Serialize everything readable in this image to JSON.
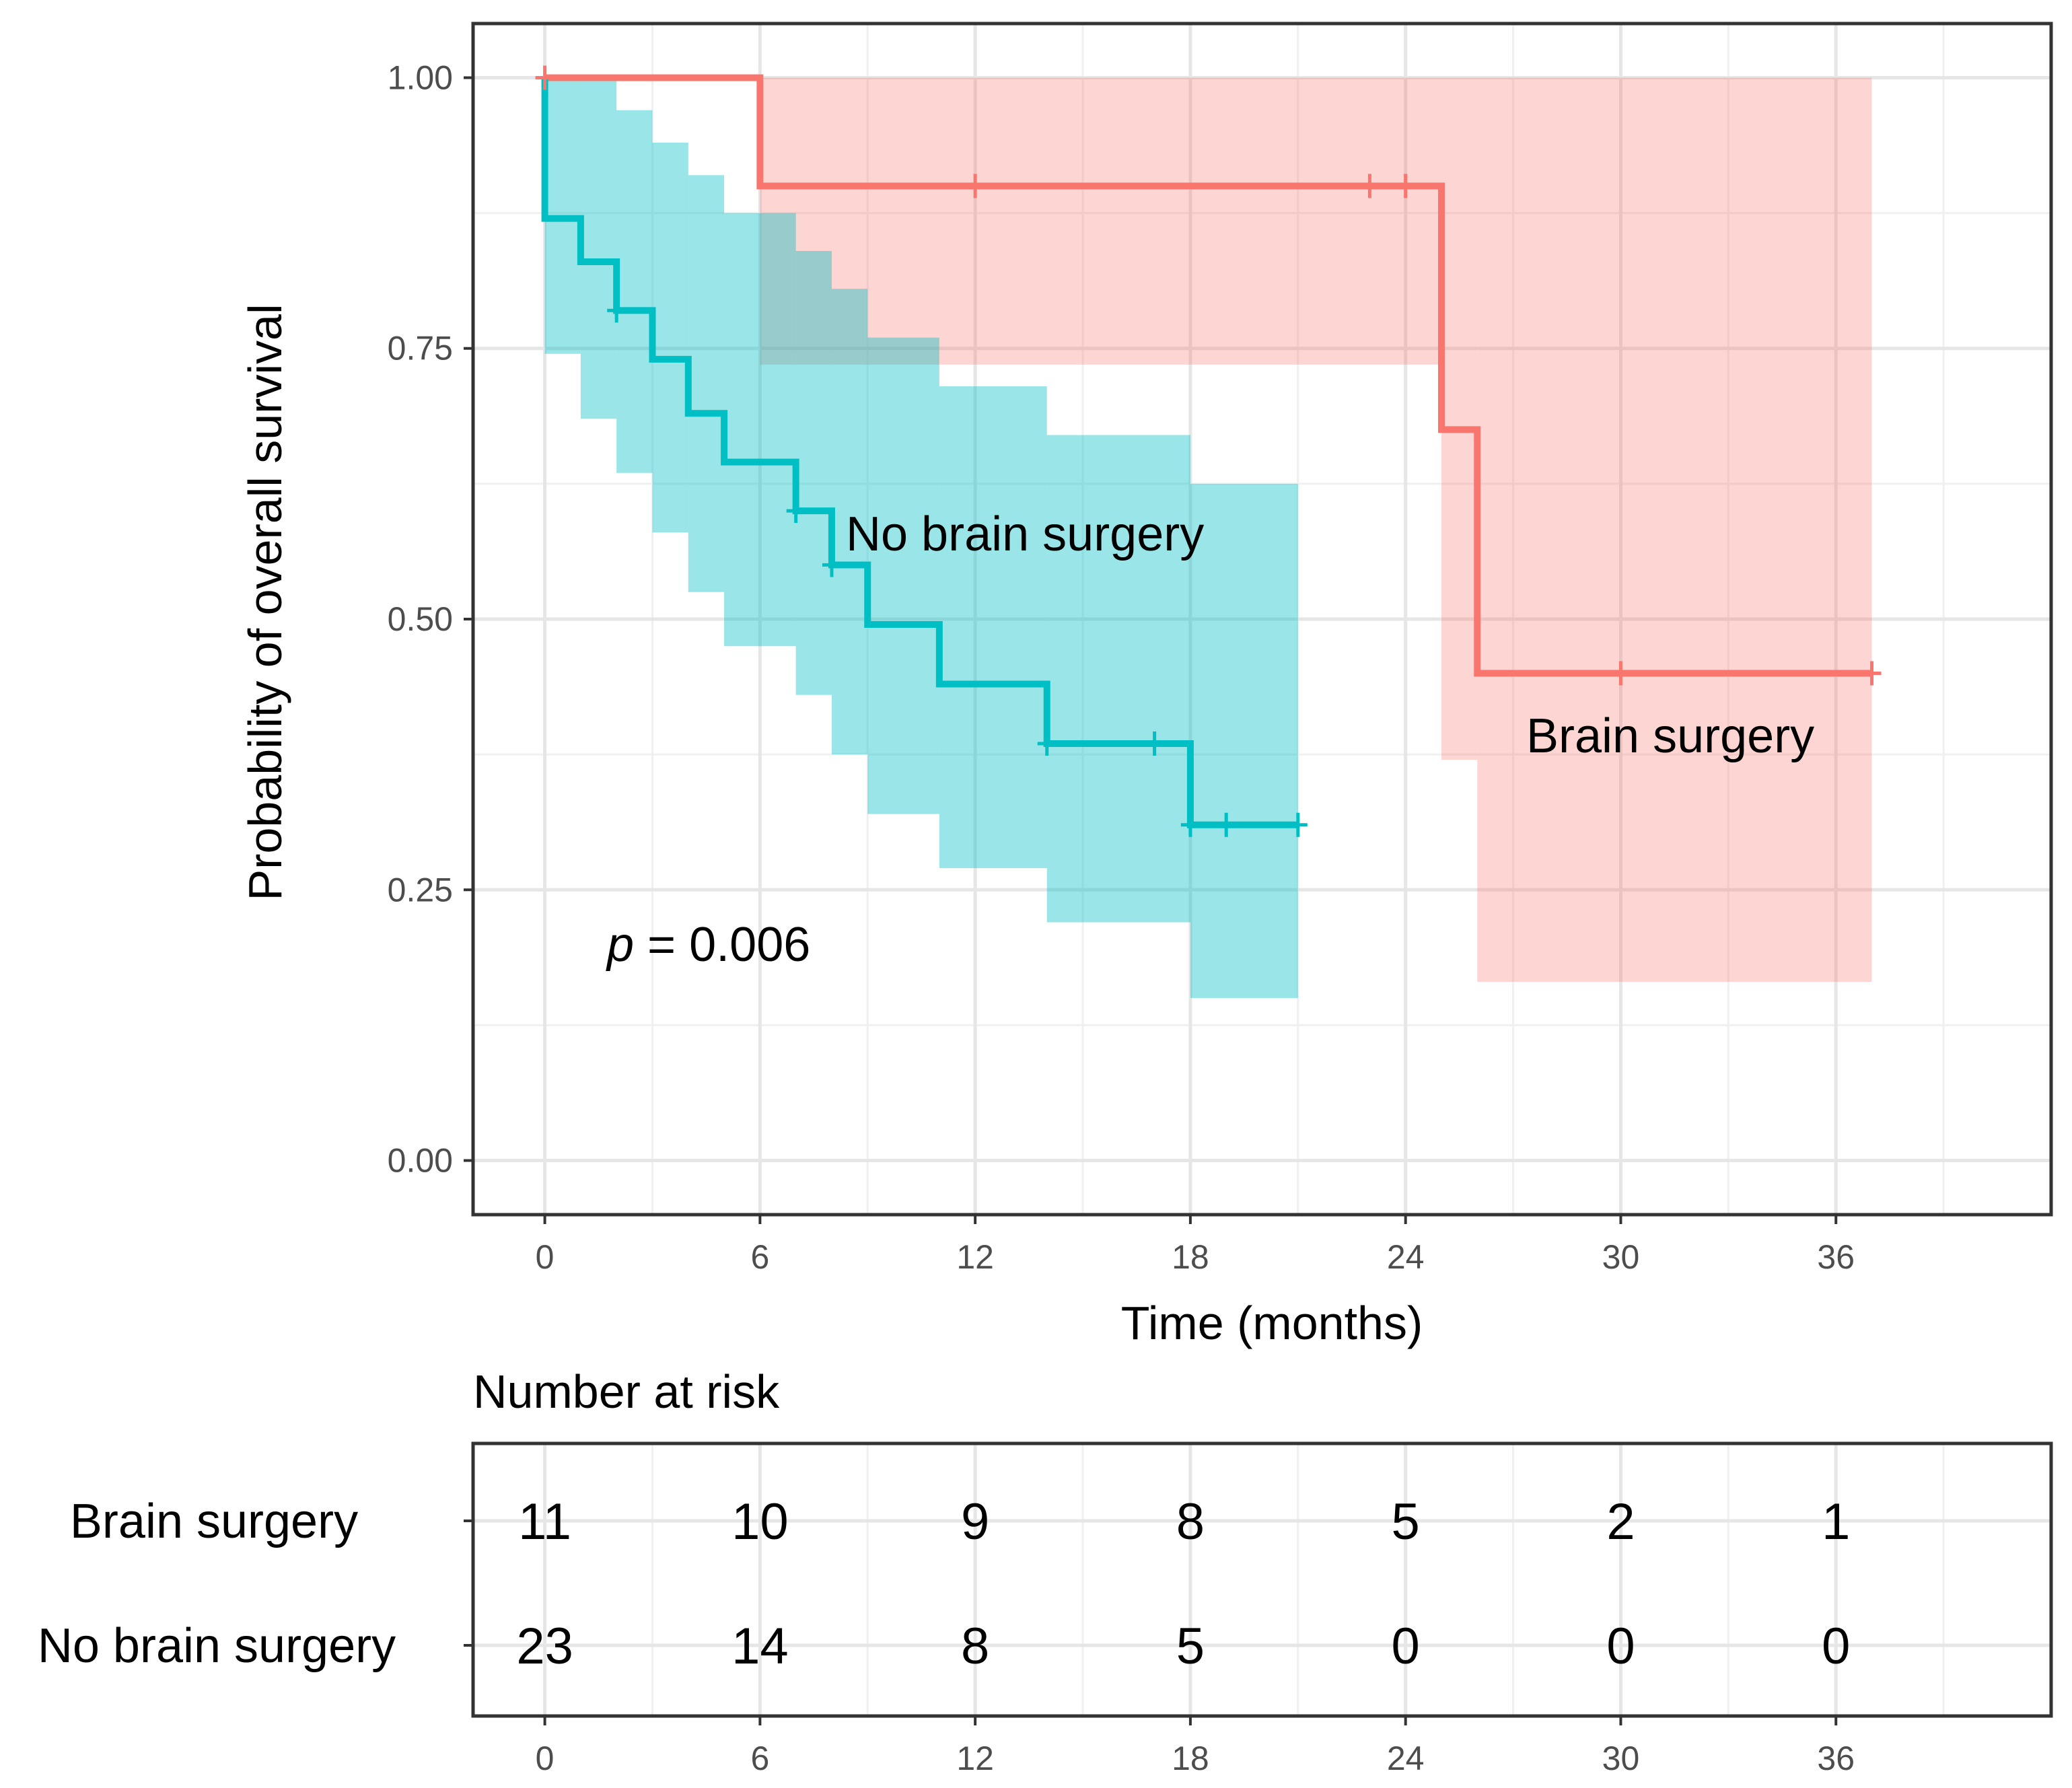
{
  "chart_data": {
    "type": "kaplan-meier",
    "title": "",
    "xlabel": "Time (months)",
    "ylabel": "Probability of overall survival",
    "xlim": [
      -2,
      42
    ],
    "ylim": [
      -0.05,
      1.05
    ],
    "x_ticks": [
      0,
      6,
      12,
      18,
      24,
      30,
      36
    ],
    "x_tick_labels": [
      "0",
      "6",
      "12",
      "18",
      "24",
      "30",
      "36"
    ],
    "y_ticks": [
      0,
      0.25,
      0.5,
      0.75,
      1.0
    ],
    "y_tick_labels": [
      "0.00",
      "0.25",
      "0.50",
      "0.75",
      "1.00"
    ],
    "grid": true,
    "p_value_symbol": "p",
    "p_value_text": " = 0.006",
    "series": [
      {
        "name": "Brain surgery",
        "label": "Brain surgery",
        "color": "#f8766d",
        "fill_color": "#f8766d",
        "steps": [
          [
            0,
            1.0
          ],
          [
            6,
            0.9
          ],
          [
            25,
            0.675
          ],
          [
            26,
            0.45
          ],
          [
            37,
            0.45
          ]
        ],
        "censor_times": [
          0,
          12,
          23,
          24,
          30,
          37
        ],
        "ci": [
          {
            "t0": 0,
            "t1": 6,
            "lo": 1.0,
            "hi": 1.0
          },
          {
            "t0": 6,
            "t1": 25,
            "lo": 0.735,
            "hi": 1.0
          },
          {
            "t0": 25,
            "t1": 26,
            "lo": 0.37,
            "hi": 1.0
          },
          {
            "t0": 26,
            "t1": 37,
            "lo": 0.165,
            "hi": 1.0
          }
        ]
      },
      {
        "name": "No brain surgery",
        "label": "No brain surgery",
        "color": "#00bfc4",
        "fill_color": "#00bfc4",
        "steps": [
          [
            0,
            1.0
          ],
          [
            0,
            0.87
          ],
          [
            1,
            0.83
          ],
          [
            2,
            0.785
          ],
          [
            3,
            0.74
          ],
          [
            4,
            0.69
          ],
          [
            5,
            0.645
          ],
          [
            7,
            0.6
          ],
          [
            8,
            0.55
          ],
          [
            9,
            0.495
          ],
          [
            11,
            0.44
          ],
          [
            14,
            0.385
          ],
          [
            18,
            0.31
          ],
          [
            21,
            0.31
          ]
        ],
        "censor_times": [
          2,
          7,
          8,
          14,
          17,
          18,
          19,
          21
        ],
        "ci": [
          {
            "t0": 0,
            "t1": 1,
            "lo": 0.745,
            "hi": 1.0
          },
          {
            "t0": 1,
            "t1": 2,
            "lo": 0.685,
            "hi": 1.0
          },
          {
            "t0": 2,
            "t1": 3,
            "lo": 0.635,
            "hi": 0.97
          },
          {
            "t0": 3,
            "t1": 4,
            "lo": 0.58,
            "hi": 0.94
          },
          {
            "t0": 4,
            "t1": 5,
            "lo": 0.525,
            "hi": 0.91
          },
          {
            "t0": 5,
            "t1": 7,
            "lo": 0.475,
            "hi": 0.875
          },
          {
            "t0": 7,
            "t1": 8,
            "lo": 0.43,
            "hi": 0.84
          },
          {
            "t0": 8,
            "t1": 9,
            "lo": 0.375,
            "hi": 0.805
          },
          {
            "t0": 9,
            "t1": 11,
            "lo": 0.32,
            "hi": 0.76
          },
          {
            "t0": 11,
            "t1": 14,
            "lo": 0.27,
            "hi": 0.715
          },
          {
            "t0": 14,
            "t1": 18,
            "lo": 0.22,
            "hi": 0.67
          },
          {
            "t0": 18,
            "t1": 21,
            "lo": 0.15,
            "hi": 0.625
          }
        ]
      }
    ],
    "risk_table": {
      "title": "Number at risk",
      "times": [
        0,
        6,
        12,
        18,
        24,
        30,
        36
      ],
      "x_tick_labels": [
        "0",
        "6",
        "12",
        "18",
        "24",
        "30",
        "36"
      ],
      "rows": [
        {
          "group": "Brain surgery",
          "counts": [
            "11",
            "10",
            "9",
            "8",
            "5",
            "2",
            "1"
          ]
        },
        {
          "group": "No brain surgery",
          "counts": [
            "23",
            "14",
            "8",
            "5",
            "0",
            "0",
            "0"
          ]
        }
      ]
    }
  }
}
